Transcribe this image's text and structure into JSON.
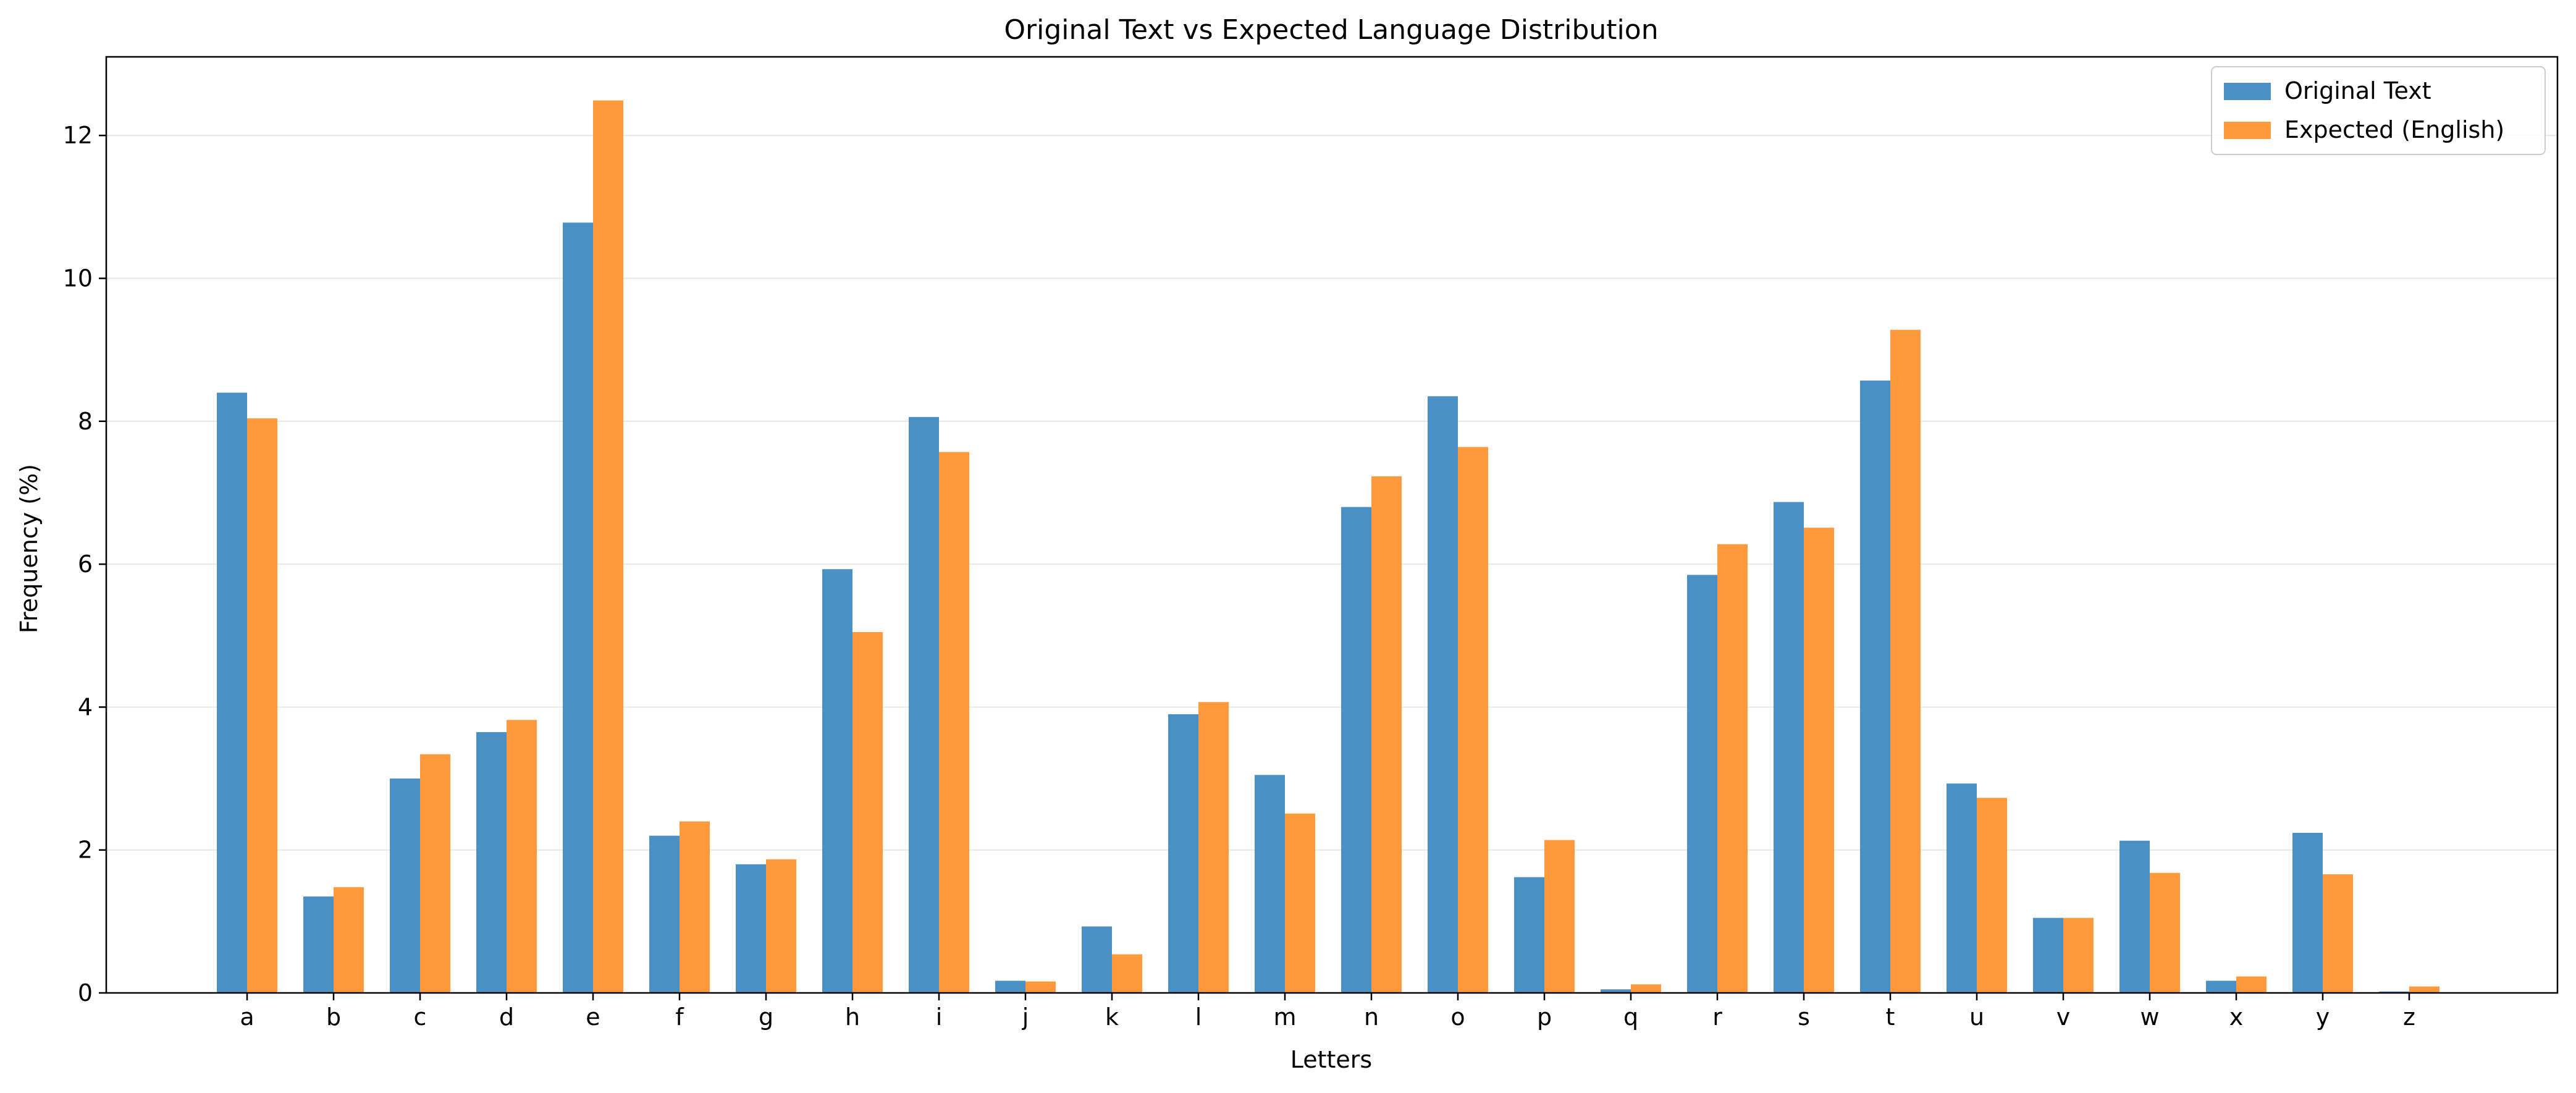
{
  "chart_data": {
    "type": "bar",
    "title": "Original Text vs Expected Language Distribution",
    "xlabel": "Letters",
    "ylabel": "Frequency (%)",
    "categories": [
      "a",
      "b",
      "c",
      "d",
      "e",
      "f",
      "g",
      "h",
      "i",
      "j",
      "k",
      "l",
      "m",
      "n",
      "o",
      "p",
      "q",
      "r",
      "s",
      "t",
      "u",
      "v",
      "w",
      "x",
      "y",
      "z"
    ],
    "ylim": [
      0,
      13.1
    ],
    "yticks": [
      0,
      2,
      4,
      6,
      8,
      10,
      12
    ],
    "grid": "horizontal",
    "legend_position": "top-right",
    "series": [
      {
        "name": "Original Text",
        "color": "#4a90c4",
        "values": [
          8.4,
          1.35,
          3.0,
          3.65,
          10.78,
          2.2,
          1.8,
          5.93,
          8.06,
          0.17,
          0.93,
          3.9,
          3.05,
          6.8,
          8.35,
          1.62,
          0.05,
          5.85,
          6.87,
          8.57,
          2.93,
          1.05,
          2.13,
          0.17,
          2.24,
          0.02
        ]
      },
      {
        "name": "Expected (English)",
        "color": "#ff9a3c",
        "values": [
          8.04,
          1.48,
          3.34,
          3.82,
          12.49,
          2.4,
          1.87,
          5.05,
          7.57,
          0.16,
          0.54,
          4.07,
          2.51,
          7.23,
          7.64,
          2.14,
          0.12,
          6.28,
          6.51,
          9.28,
          2.73,
          1.05,
          1.68,
          0.23,
          1.66,
          0.09
        ]
      }
    ]
  }
}
